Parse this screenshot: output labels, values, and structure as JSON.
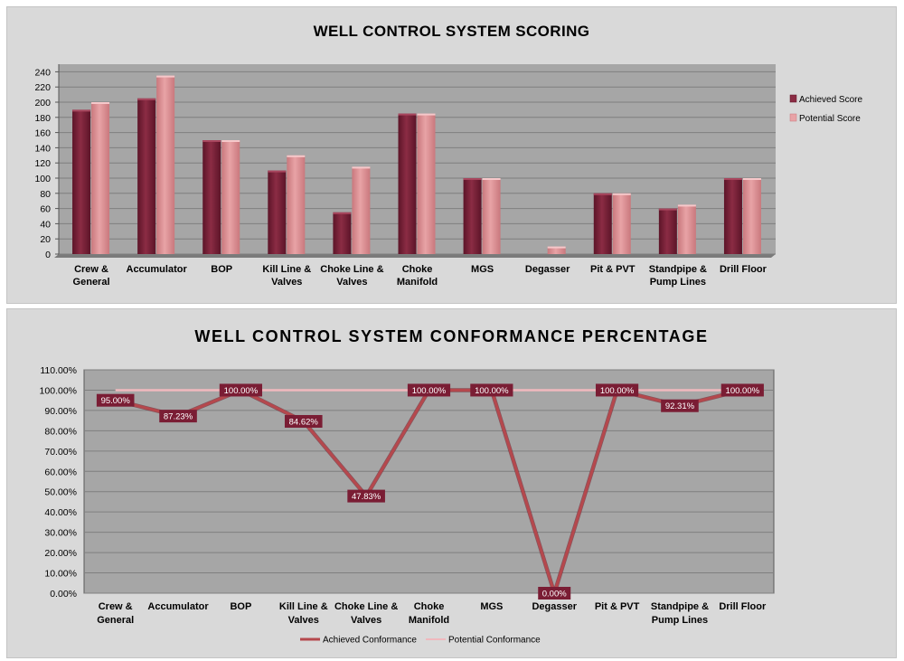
{
  "chart_data": [
    {
      "type": "bar",
      "title": "WELL CONTROL SYSTEM SCORING",
      "categories": [
        [
          "Crew &",
          "General"
        ],
        [
          "Accumulator"
        ],
        [
          "BOP"
        ],
        [
          "Kill Line &",
          "Valves"
        ],
        [
          "Choke Line &",
          "Valves"
        ],
        [
          "Choke",
          "Manifold"
        ],
        [
          "MGS"
        ],
        [
          "Degasser"
        ],
        [
          "Pit & PVT"
        ],
        [
          "Standpipe &",
          "Pump Lines"
        ],
        [
          "Drill Floor"
        ]
      ],
      "series": [
        {
          "name": "Achieved Score",
          "color": "#8b2c44",
          "values": [
            190,
            205,
            150,
            110,
            55,
            185,
            100,
            0,
            80,
            60,
            100
          ]
        },
        {
          "name": "Potential Score",
          "color": "#e8a3a6",
          "values": [
            200,
            235,
            150,
            130,
            115,
            185,
            100,
            10,
            80,
            65,
            100
          ]
        }
      ],
      "yticks": [
        "0",
        "20",
        "40",
        "60",
        "80",
        "100",
        "120",
        "140",
        "160",
        "180",
        "200",
        "220",
        "240"
      ],
      "ylim": [
        0,
        250
      ],
      "legend_position": "right",
      "grid": true
    },
    {
      "type": "line",
      "title": "WELL CONTROL SYSTEM CONFORMANCE PERCENTAGE",
      "categories": [
        [
          "Crew &",
          "General"
        ],
        [
          "Accumulator"
        ],
        [
          "BOP"
        ],
        [
          "Kill Line &",
          "Valves"
        ],
        [
          "Choke Line &",
          "Valves"
        ],
        [
          "Choke",
          "Manifold"
        ],
        [
          "MGS"
        ],
        [
          "Degasser"
        ],
        [
          "Pit & PVT"
        ],
        [
          "Standpipe &",
          "Pump Lines"
        ],
        [
          "Drill Floor"
        ]
      ],
      "series": [
        {
          "name": "Achieved Conformance",
          "color": "#b5484d",
          "values": [
            95.0,
            87.23,
            100.0,
            84.62,
            47.83,
            100.0,
            100.0,
            0.0,
            100.0,
            92.31,
            100.0
          ],
          "labels": [
            "95.00%",
            "87.23%",
            "100.00%",
            "84.62%",
            "47.83%",
            "100.00%",
            "100.00%",
            "0.00%",
            "100.00%",
            "92.31%",
            "100.00%"
          ]
        },
        {
          "name": "Potential Conformance",
          "color": "#f0b8bd",
          "values": [
            100,
            100,
            100,
            100,
            100,
            100,
            100,
            100,
            100,
            100,
            100
          ]
        }
      ],
      "yticks": [
        "0.00%",
        "10.00%",
        "20.00%",
        "30.00%",
        "40.00%",
        "50.00%",
        "60.00%",
        "70.00%",
        "80.00%",
        "90.00%",
        "100.00%",
        "110.00%"
      ],
      "ylim": [
        0,
        110
      ],
      "legend_position": "bottom",
      "grid": true
    }
  ]
}
